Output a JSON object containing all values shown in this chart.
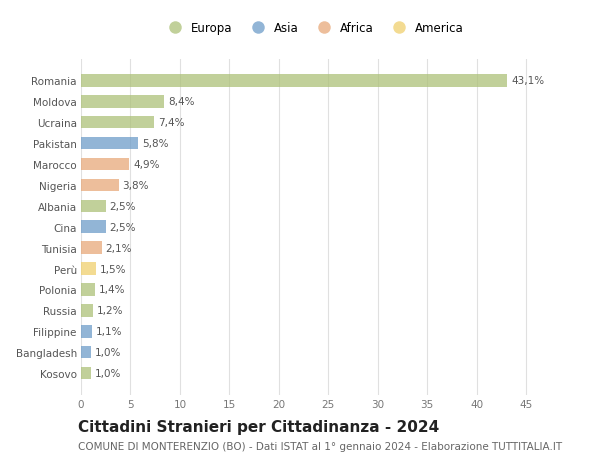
{
  "countries": [
    "Romania",
    "Moldova",
    "Ucraina",
    "Pakistan",
    "Marocco",
    "Nigeria",
    "Albania",
    "Cina",
    "Tunisia",
    "Perù",
    "Polonia",
    "Russia",
    "Filippine",
    "Bangladesh",
    "Kosovo"
  ],
  "values": [
    43.1,
    8.4,
    7.4,
    5.8,
    4.9,
    3.8,
    2.5,
    2.5,
    2.1,
    1.5,
    1.4,
    1.2,
    1.1,
    1.0,
    1.0
  ],
  "labels": [
    "43,1%",
    "8,4%",
    "7,4%",
    "5,8%",
    "4,9%",
    "3,8%",
    "2,5%",
    "2,5%",
    "2,1%",
    "1,5%",
    "1,4%",
    "1,2%",
    "1,1%",
    "1,0%",
    "1,0%"
  ],
  "continents": [
    "Europa",
    "Europa",
    "Europa",
    "Asia",
    "Africa",
    "Africa",
    "Europa",
    "Asia",
    "Africa",
    "America",
    "Europa",
    "Europa",
    "Asia",
    "Asia",
    "Europa"
  ],
  "continent_colors": {
    "Europa": "#adc178",
    "Asia": "#6e9dc9",
    "Africa": "#e8a97a",
    "America": "#f0d06e"
  },
  "legend_order": [
    "Europa",
    "Asia",
    "Africa",
    "America"
  ],
  "title": "Cittadini Stranieri per Cittadinanza - 2024",
  "subtitle": "COMUNE DI MONTERENZIO (BO) - Dati ISTAT al 1° gennaio 2024 - Elaborazione TUTTITALIA.IT",
  "xlim": [
    0,
    47
  ],
  "xticks": [
    0,
    5,
    10,
    15,
    20,
    25,
    30,
    35,
    40,
    45
  ],
  "background_color": "#ffffff",
  "grid_color": "#e0e0e0",
  "bar_alpha": 0.75,
  "title_fontsize": 11,
  "subtitle_fontsize": 7.5,
  "label_fontsize": 7.5,
  "tick_fontsize": 7.5,
  "legend_fontsize": 8.5
}
